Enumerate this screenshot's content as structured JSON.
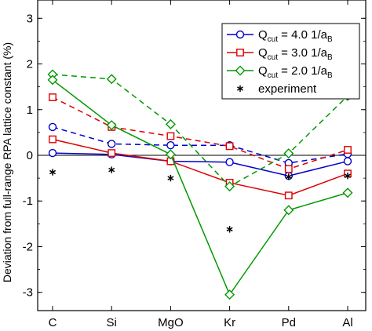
{
  "chart_data": {
    "type": "line",
    "title": "",
    "xlabel": "",
    "ylabel": "Deviation from full-range RPA lattice constant (%)",
    "categories": [
      "C",
      "Si",
      "MgO",
      "Kr",
      "Pd",
      "Al"
    ],
    "ylim": [
      -3.4,
      3.4
    ],
    "yticks": [
      -3,
      -2,
      -1,
      0,
      1,
      2,
      3
    ],
    "zero_line": true,
    "legend_position": "top-right",
    "series": [
      {
        "name": "Q",
        "name_sub": "cut",
        "name_rest": " = 4.0 1/a",
        "name_rest_sub": "B",
        "color": "#0000cc",
        "marker": "circle",
        "solid": [
          0.05,
          0.02,
          -0.13,
          -0.15,
          -0.45,
          -0.13
        ],
        "dashed": [
          0.62,
          0.25,
          0.22,
          0.22,
          -0.17,
          0.03
        ]
      },
      {
        "name": "Q",
        "name_sub": "cut",
        "name_rest": " = 3.0 1/a",
        "name_rest_sub": "B",
        "color": "#dd0000",
        "marker": "square",
        "solid": [
          0.35,
          0.05,
          -0.13,
          -0.6,
          -0.88,
          -0.4
        ],
        "dashed": [
          1.27,
          0.62,
          0.42,
          0.2,
          -0.3,
          0.12
        ]
      },
      {
        "name": "Q",
        "name_sub": "cut",
        "name_rest": " = 2.0 1/a",
        "name_rest_sub": "B",
        "color": "#009900",
        "marker": "diamond",
        "solid": [
          1.65,
          0.66,
          0.02,
          -3.05,
          -1.2,
          -0.82
        ],
        "dashed": [
          1.77,
          1.67,
          0.68,
          -0.68,
          0.04,
          1.3
        ]
      },
      {
        "name": "experiment",
        "color": "#000000",
        "marker": "asterisk",
        "values": [
          -0.37,
          -0.32,
          -0.5,
          -1.62,
          -0.47,
          -0.45
        ]
      }
    ]
  }
}
